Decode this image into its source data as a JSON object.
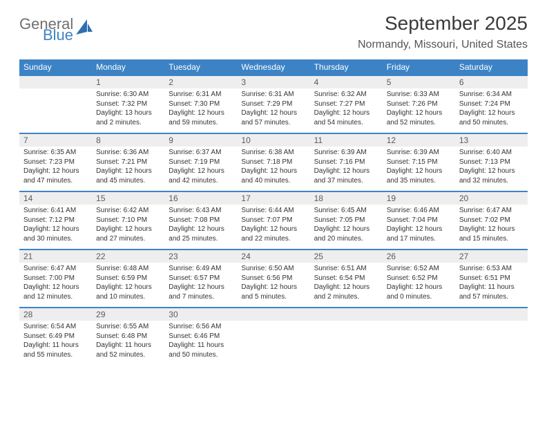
{
  "brand": {
    "word1": "General",
    "word2": "Blue"
  },
  "title": "September 2025",
  "location": "Normandy, Missouri, United States",
  "colors": {
    "header_bar": "#3c83c5",
    "daynum_bg": "#eeeeee",
    "text": "#333333",
    "title_text": "#3a3a3a"
  },
  "dow": [
    "Sunday",
    "Monday",
    "Tuesday",
    "Wednesday",
    "Thursday",
    "Friday",
    "Saturday"
  ],
  "weeks": [
    {
      "nums": [
        "",
        "1",
        "2",
        "3",
        "4",
        "5",
        "6"
      ],
      "cells": [
        {
          "sunrise": "",
          "sunset": "",
          "daylight": ""
        },
        {
          "sunrise": "Sunrise: 6:30 AM",
          "sunset": "Sunset: 7:32 PM",
          "daylight": "Daylight: 13 hours and 2 minutes."
        },
        {
          "sunrise": "Sunrise: 6:31 AM",
          "sunset": "Sunset: 7:30 PM",
          "daylight": "Daylight: 12 hours and 59 minutes."
        },
        {
          "sunrise": "Sunrise: 6:31 AM",
          "sunset": "Sunset: 7:29 PM",
          "daylight": "Daylight: 12 hours and 57 minutes."
        },
        {
          "sunrise": "Sunrise: 6:32 AM",
          "sunset": "Sunset: 7:27 PM",
          "daylight": "Daylight: 12 hours and 54 minutes."
        },
        {
          "sunrise": "Sunrise: 6:33 AM",
          "sunset": "Sunset: 7:26 PM",
          "daylight": "Daylight: 12 hours and 52 minutes."
        },
        {
          "sunrise": "Sunrise: 6:34 AM",
          "sunset": "Sunset: 7:24 PM",
          "daylight": "Daylight: 12 hours and 50 minutes."
        }
      ]
    },
    {
      "nums": [
        "7",
        "8",
        "9",
        "10",
        "11",
        "12",
        "13"
      ],
      "cells": [
        {
          "sunrise": "Sunrise: 6:35 AM",
          "sunset": "Sunset: 7:23 PM",
          "daylight": "Daylight: 12 hours and 47 minutes."
        },
        {
          "sunrise": "Sunrise: 6:36 AM",
          "sunset": "Sunset: 7:21 PM",
          "daylight": "Daylight: 12 hours and 45 minutes."
        },
        {
          "sunrise": "Sunrise: 6:37 AM",
          "sunset": "Sunset: 7:19 PM",
          "daylight": "Daylight: 12 hours and 42 minutes."
        },
        {
          "sunrise": "Sunrise: 6:38 AM",
          "sunset": "Sunset: 7:18 PM",
          "daylight": "Daylight: 12 hours and 40 minutes."
        },
        {
          "sunrise": "Sunrise: 6:39 AM",
          "sunset": "Sunset: 7:16 PM",
          "daylight": "Daylight: 12 hours and 37 minutes."
        },
        {
          "sunrise": "Sunrise: 6:39 AM",
          "sunset": "Sunset: 7:15 PM",
          "daylight": "Daylight: 12 hours and 35 minutes."
        },
        {
          "sunrise": "Sunrise: 6:40 AM",
          "sunset": "Sunset: 7:13 PM",
          "daylight": "Daylight: 12 hours and 32 minutes."
        }
      ]
    },
    {
      "nums": [
        "14",
        "15",
        "16",
        "17",
        "18",
        "19",
        "20"
      ],
      "cells": [
        {
          "sunrise": "Sunrise: 6:41 AM",
          "sunset": "Sunset: 7:12 PM",
          "daylight": "Daylight: 12 hours and 30 minutes."
        },
        {
          "sunrise": "Sunrise: 6:42 AM",
          "sunset": "Sunset: 7:10 PM",
          "daylight": "Daylight: 12 hours and 27 minutes."
        },
        {
          "sunrise": "Sunrise: 6:43 AM",
          "sunset": "Sunset: 7:08 PM",
          "daylight": "Daylight: 12 hours and 25 minutes."
        },
        {
          "sunrise": "Sunrise: 6:44 AM",
          "sunset": "Sunset: 7:07 PM",
          "daylight": "Daylight: 12 hours and 22 minutes."
        },
        {
          "sunrise": "Sunrise: 6:45 AM",
          "sunset": "Sunset: 7:05 PM",
          "daylight": "Daylight: 12 hours and 20 minutes."
        },
        {
          "sunrise": "Sunrise: 6:46 AM",
          "sunset": "Sunset: 7:04 PM",
          "daylight": "Daylight: 12 hours and 17 minutes."
        },
        {
          "sunrise": "Sunrise: 6:47 AM",
          "sunset": "Sunset: 7:02 PM",
          "daylight": "Daylight: 12 hours and 15 minutes."
        }
      ]
    },
    {
      "nums": [
        "21",
        "22",
        "23",
        "24",
        "25",
        "26",
        "27"
      ],
      "cells": [
        {
          "sunrise": "Sunrise: 6:47 AM",
          "sunset": "Sunset: 7:00 PM",
          "daylight": "Daylight: 12 hours and 12 minutes."
        },
        {
          "sunrise": "Sunrise: 6:48 AM",
          "sunset": "Sunset: 6:59 PM",
          "daylight": "Daylight: 12 hours and 10 minutes."
        },
        {
          "sunrise": "Sunrise: 6:49 AM",
          "sunset": "Sunset: 6:57 PM",
          "daylight": "Daylight: 12 hours and 7 minutes."
        },
        {
          "sunrise": "Sunrise: 6:50 AM",
          "sunset": "Sunset: 6:56 PM",
          "daylight": "Daylight: 12 hours and 5 minutes."
        },
        {
          "sunrise": "Sunrise: 6:51 AM",
          "sunset": "Sunset: 6:54 PM",
          "daylight": "Daylight: 12 hours and 2 minutes."
        },
        {
          "sunrise": "Sunrise: 6:52 AM",
          "sunset": "Sunset: 6:52 PM",
          "daylight": "Daylight: 12 hours and 0 minutes."
        },
        {
          "sunrise": "Sunrise: 6:53 AM",
          "sunset": "Sunset: 6:51 PM",
          "daylight": "Daylight: 11 hours and 57 minutes."
        }
      ]
    },
    {
      "nums": [
        "28",
        "29",
        "30",
        "",
        "",
        "",
        ""
      ],
      "cells": [
        {
          "sunrise": "Sunrise: 6:54 AM",
          "sunset": "Sunset: 6:49 PM",
          "daylight": "Daylight: 11 hours and 55 minutes."
        },
        {
          "sunrise": "Sunrise: 6:55 AM",
          "sunset": "Sunset: 6:48 PM",
          "daylight": "Daylight: 11 hours and 52 minutes."
        },
        {
          "sunrise": "Sunrise: 6:56 AM",
          "sunset": "Sunset: 6:46 PM",
          "daylight": "Daylight: 11 hours and 50 minutes."
        },
        {
          "sunrise": "",
          "sunset": "",
          "daylight": ""
        },
        {
          "sunrise": "",
          "sunset": "",
          "daylight": ""
        },
        {
          "sunrise": "",
          "sunset": "",
          "daylight": ""
        },
        {
          "sunrise": "",
          "sunset": "",
          "daylight": ""
        }
      ]
    }
  ]
}
